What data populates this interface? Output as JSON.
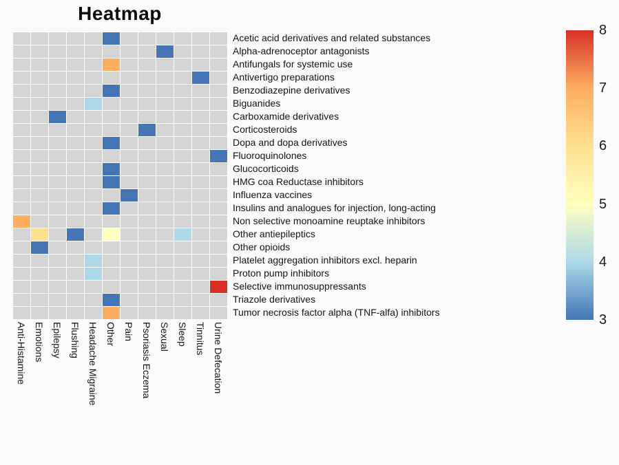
{
  "page": {
    "background": "#fafafa"
  },
  "chart_data": {
    "type": "heatmap",
    "title": "Heatmap",
    "x_categories": [
      "Anti-Histamine",
      "Emotions",
      "Epilepsy",
      "Flushing",
      "Headache Migraine",
      "Other",
      "Pain",
      "Psoriasis Eczema",
      "Sexual",
      "Sleep",
      "Tinnitus",
      "Urine Defecation"
    ],
    "y_categories": [
      "Acetic acid derivatives and related substances",
      "Alpha-adrenoceptor antagonists",
      "Antifungals for systemic use",
      "Antivertigo preparations",
      "Benzodiazepine derivatives",
      "Biguanides",
      "Carboxamide derivatives",
      "Corticosteroids",
      "Dopa and dopa derivatives",
      "Fluoroquinolones",
      "Glucocorticoids",
      "HMG coa Reductase inhibitors",
      "Influenza vaccines",
      "Insulins and analogues for injection, long-acting",
      "Non selective monoamine reuptake inhibitors",
      "Other antiepileptics",
      "Other opioids",
      "Platelet aggregation inhibitors excl. heparin",
      "Proton pump inhibitors",
      "Selective immunosuppressants",
      "Triazole derivatives",
      "Tumor necrosis factor alpha (TNF-alfa) inhibitors"
    ],
    "cells": [
      {
        "row": 0,
        "col": 5,
        "value": 3
      },
      {
        "row": 1,
        "col": 8,
        "value": 3
      },
      {
        "row": 2,
        "col": 5,
        "value": 7
      },
      {
        "row": 3,
        "col": 10,
        "value": 3
      },
      {
        "row": 4,
        "col": 5,
        "value": 3
      },
      {
        "row": 5,
        "col": 4,
        "value": 4
      },
      {
        "row": 6,
        "col": 2,
        "value": 3
      },
      {
        "row": 7,
        "col": 7,
        "value": 3
      },
      {
        "row": 8,
        "col": 5,
        "value": 3
      },
      {
        "row": 9,
        "col": 11,
        "value": 3
      },
      {
        "row": 10,
        "col": 5,
        "value": 3
      },
      {
        "row": 11,
        "col": 5,
        "value": 3
      },
      {
        "row": 12,
        "col": 6,
        "value": 3
      },
      {
        "row": 13,
        "col": 5,
        "value": 3
      },
      {
        "row": 14,
        "col": 0,
        "value": 7
      },
      {
        "row": 15,
        "col": 1,
        "value": 6
      },
      {
        "row": 15,
        "col": 3,
        "value": 3
      },
      {
        "row": 15,
        "col": 5,
        "value": 5
      },
      {
        "row": 15,
        "col": 9,
        "value": 4
      },
      {
        "row": 16,
        "col": 1,
        "value": 3
      },
      {
        "row": 17,
        "col": 4,
        "value": 4
      },
      {
        "row": 18,
        "col": 4,
        "value": 4
      },
      {
        "row": 19,
        "col": 11,
        "value": 8
      },
      {
        "row": 20,
        "col": 5,
        "value": 3
      },
      {
        "row": 21,
        "col": 5,
        "value": 7
      }
    ],
    "value_range": [
      3,
      8
    ],
    "colorbar_ticks": [
      3,
      4,
      5,
      6,
      7,
      8
    ],
    "legend_position": "right",
    "grid": true,
    "colors": {
      "empty_cell": "#d4d4d4",
      "grid_line": "#ffffff",
      "colormap_stops": [
        "#4575b4",
        "#abd9e9",
        "#ffffbf",
        "#fee090",
        "#fdae61",
        "#d73027"
      ]
    }
  }
}
